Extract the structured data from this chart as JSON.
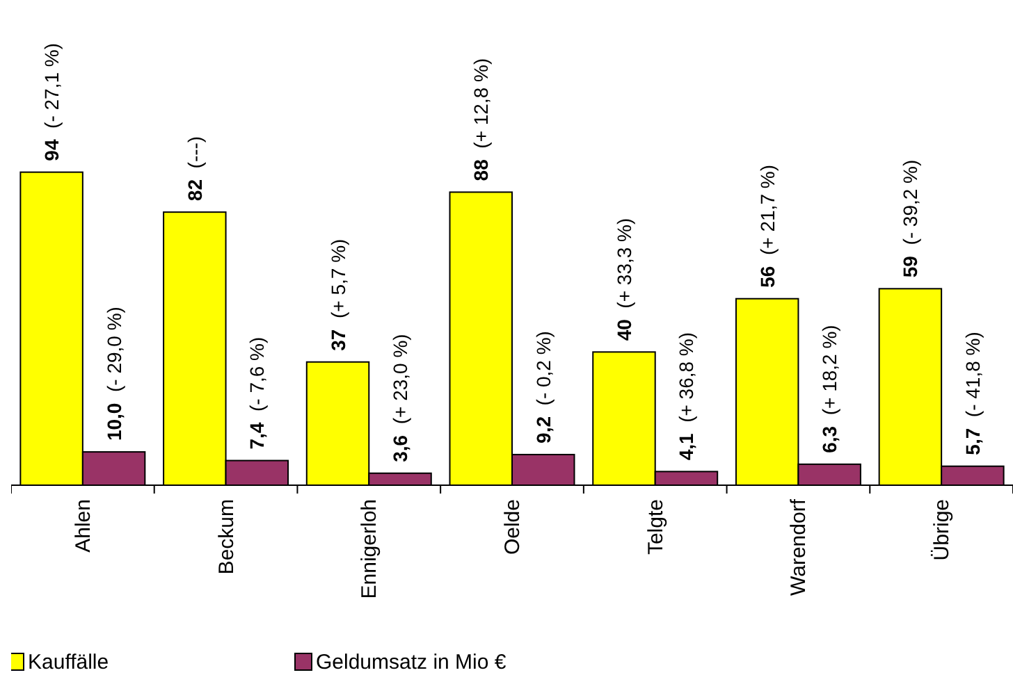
{
  "chart_data": {
    "type": "bar",
    "categories": [
      "Ahlen",
      "Beckum",
      "Ennigerloh",
      "Oelde",
      "Telgte",
      "Warendorf",
      "Übrige"
    ],
    "series": [
      {
        "name": "Kauffälle",
        "color": "#ffff00",
        "values": [
          94,
          82,
          37,
          88,
          40,
          56,
          59
        ],
        "value_labels": [
          "94  (- 27,1 %)",
          "82  (---)",
          "37  (+ 5,7 %)",
          "88  (+ 12,8 %)",
          "40  (+ 33,3 %)",
          "56  (+ 21,7 %)",
          "59  (- 39,2 %)"
        ]
      },
      {
        "name": "Geldumsatz in Mio €",
        "color": "#993366",
        "values": [
          10.0,
          7.4,
          3.6,
          9.2,
          4.1,
          6.3,
          5.7
        ],
        "value_labels": [
          "10,0  (- 29,0 %)",
          "7,4  (- 7,6 %)",
          "3,6  (+ 23,0 %)",
          "9,2  (- 0,2 %)",
          "4,1  (+ 36,8 %)",
          "6,3  (+ 18,2 %)",
          "5,7  (- 41,8 %)"
        ]
      }
    ],
    "legend": "bottom"
  }
}
